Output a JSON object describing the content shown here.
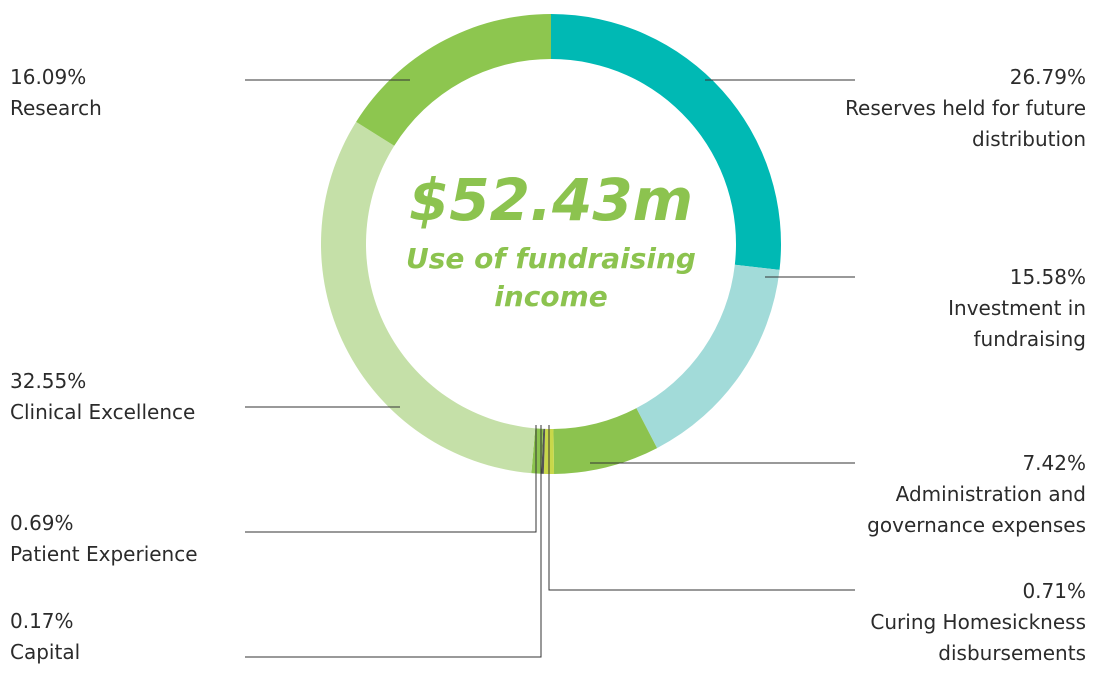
{
  "chart_data": {
    "type": "donut",
    "title": "$52.43m",
    "subtitle": "Use of fundraising income",
    "categories": [
      "Reserves held for future distribution",
      "Investment in fundraising",
      "Administration and governance expenses",
      "Curing Homesickness disbursements",
      "Capital",
      "Patient Experience",
      "Clinical Excellence",
      "Research"
    ],
    "values": [
      26.79,
      15.58,
      7.42,
      0.71,
      0.17,
      0.69,
      32.55,
      16.09
    ],
    "value_labels": [
      "26.79%",
      "15.58%",
      "7.42%",
      "0.71%",
      "0.17%",
      "0.69%",
      "32.55%",
      "16.09%"
    ],
    "colors": [
      "#00b9b4",
      "#a2dbd9",
      "#8cc34f",
      "#c8d84a",
      "#555555",
      "#8cc34f",
      "#c5e0a8",
      "#8dc64f"
    ]
  }
}
